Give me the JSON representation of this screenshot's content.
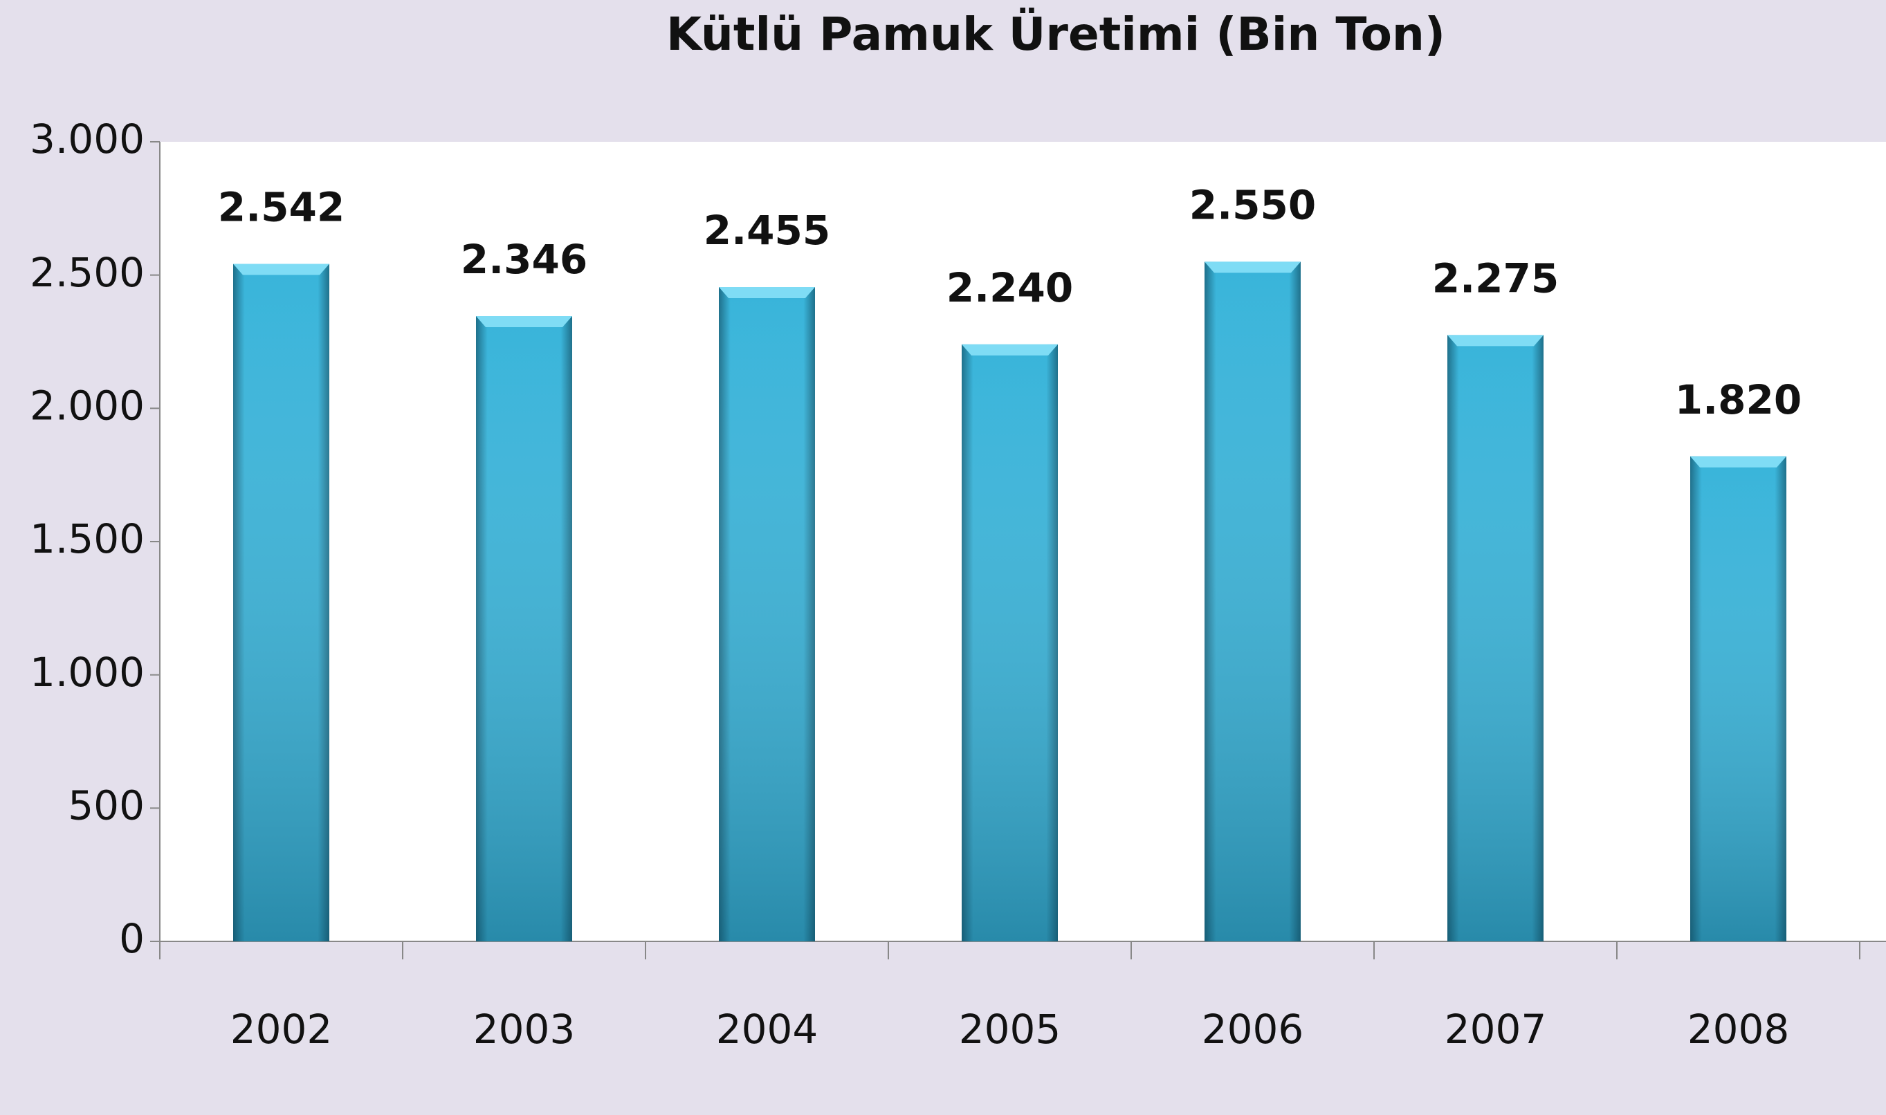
{
  "chart_data": {
    "type": "bar",
    "title": "Kütlü Pamuk Üretimi (Bin Ton)",
    "categories": [
      "2002",
      "2003",
      "2004",
      "2005",
      "2006",
      "2007",
      "2008"
    ],
    "values": [
      2542,
      2346,
      2455,
      2240,
      2550,
      2275,
      1820
    ],
    "value_labels": [
      "2.542",
      "2.346",
      "2.455",
      "2.240",
      "2.550",
      "2.275",
      "1.820"
    ],
    "color": "#36b0d6",
    "ylim": [
      0,
      3000
    ],
    "yticks": [
      0,
      500,
      {
        "value": 1000,
        "label": "1.000"
      },
      {
        "value": 1500,
        "label": "1.500"
      },
      {
        "value": 2000,
        "label": "2.000"
      },
      {
        "value": 2500,
        "label": "2.500"
      },
      {
        "value": 3000,
        "label": "3.000"
      }
    ],
    "grid": false
  }
}
